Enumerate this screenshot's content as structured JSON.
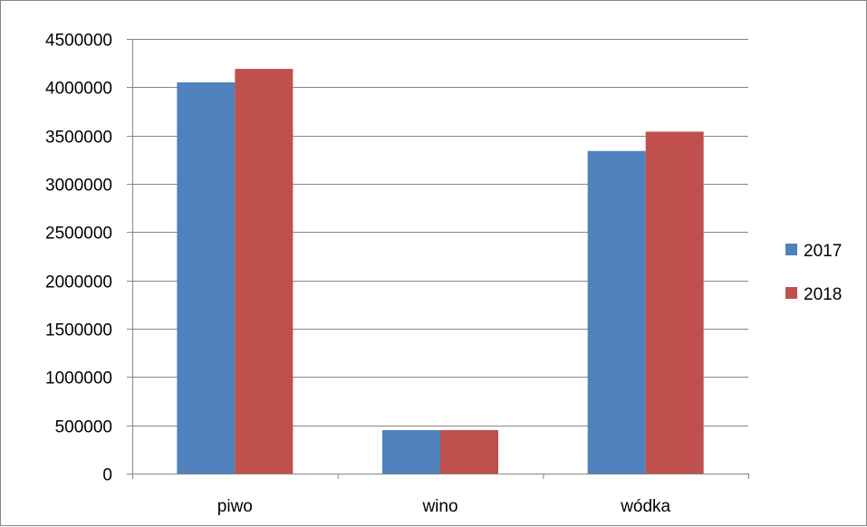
{
  "chart_data": {
    "type": "bar",
    "title": "",
    "xlabel": "",
    "ylabel": "",
    "categories": [
      "piwo",
      "wino",
      "wódka"
    ],
    "series": [
      {
        "name": "2017",
        "color": "#4F81BD",
        "values": [
          4050000,
          450000,
          3340000
        ]
      },
      {
        "name": "2018",
        "color": "#C0504D",
        "values": [
          4190000,
          450000,
          3540000
        ]
      }
    ],
    "ylim": [
      0,
      4500000
    ],
    "yticks": [
      0,
      500000,
      1000000,
      1500000,
      2000000,
      2500000,
      3000000,
      3500000,
      4000000,
      4500000
    ],
    "ytick_labels": [
      "0",
      "500000",
      "1000000",
      "1500000",
      "2000000",
      "2500000",
      "3000000",
      "3500000",
      "4000000",
      "4500000"
    ],
    "grid": true,
    "legend_position": "right",
    "colors": {
      "gridline": "#868686",
      "axis": "#868686",
      "frame": "#868686"
    }
  }
}
